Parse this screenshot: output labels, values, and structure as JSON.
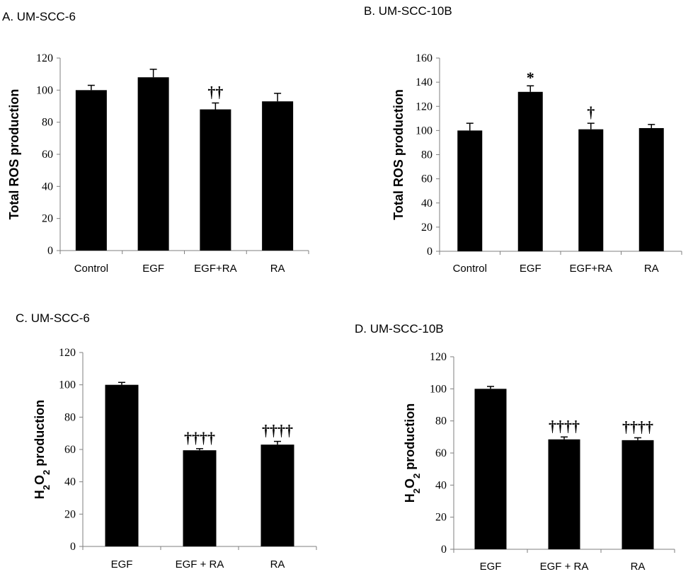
{
  "chart_data": [
    {
      "type": "bar",
      "title": "A. UM-SCC-6",
      "categories": [
        "Control",
        "EGF",
        "EGF+RA",
        "RA"
      ],
      "values": [
        100,
        108,
        88,
        93
      ],
      "errors": [
        3,
        5,
        4,
        5
      ],
      "annotations": [
        "",
        "",
        "††",
        ""
      ],
      "ylabel": "Total ROS production",
      "ylim": [
        0,
        120
      ],
      "yticks": [
        0,
        20,
        40,
        60,
        80,
        100,
        120
      ],
      "ytick_labels": [
        "0",
        "20",
        "40",
        "60",
        "80",
        "100",
        "120"
      ],
      "bar_color": "#000000",
      "grid": false
    },
    {
      "type": "bar",
      "title": "B. UM-SCC-10B",
      "categories": [
        "Control",
        "EGF",
        "EGF+RA",
        "RA"
      ],
      "values": [
        100,
        132,
        101,
        102
      ],
      "errors": [
        6,
        5,
        5,
        3
      ],
      "annotations": [
        "",
        "*",
        "†",
        ""
      ],
      "ylabel": "Total ROS production",
      "ylim": [
        0,
        160
      ],
      "yticks": [
        0,
        20,
        40,
        60,
        80,
        100,
        120,
        140,
        160
      ],
      "ytick_labels": [
        "0",
        "20",
        "40",
        "60",
        "80",
        "100",
        "120",
        "140",
        "160"
      ],
      "bar_color": "#000000",
      "grid": false
    },
    {
      "type": "bar",
      "title": "C. UM-SCC-6",
      "categories": [
        "EGF",
        "EGF + RA",
        "RA"
      ],
      "values": [
        100,
        59.5,
        63
      ],
      "errors": [
        1.5,
        1,
        2
      ],
      "annotations": [
        "",
        "††††",
        "††††"
      ],
      "ylabel": "H2O2 production",
      "ylabel_parts": [
        "H",
        "2",
        "O",
        "2",
        " production"
      ],
      "ylim": [
        0,
        120
      ],
      "yticks": [
        0,
        20,
        40,
        60,
        80,
        100,
        120
      ],
      "ytick_labels": [
        "0",
        "20",
        "40",
        "60",
        "80",
        "100",
        "120"
      ],
      "bar_color": "#000000",
      "grid": false
    },
    {
      "type": "bar",
      "title": "D.  UM-SCC-10B",
      "categories": [
        "EGF",
        "EGF + RA",
        "RA"
      ],
      "values": [
        100,
        68.5,
        68
      ],
      "errors": [
        1.5,
        1.5,
        1.5
      ],
      "annotations": [
        "",
        "††††",
        "††††"
      ],
      "ylabel": "H2O2 production",
      "ylabel_parts": [
        "H",
        "2",
        "O",
        "2",
        " production"
      ],
      "ylim": [
        0,
        120
      ],
      "yticks": [
        0,
        20,
        40,
        60,
        80,
        100,
        120
      ],
      "ytick_labels": [
        "0",
        "20",
        "40",
        "60",
        "80",
        "100",
        "120"
      ],
      "bar_color": "#000000",
      "grid": false
    }
  ]
}
